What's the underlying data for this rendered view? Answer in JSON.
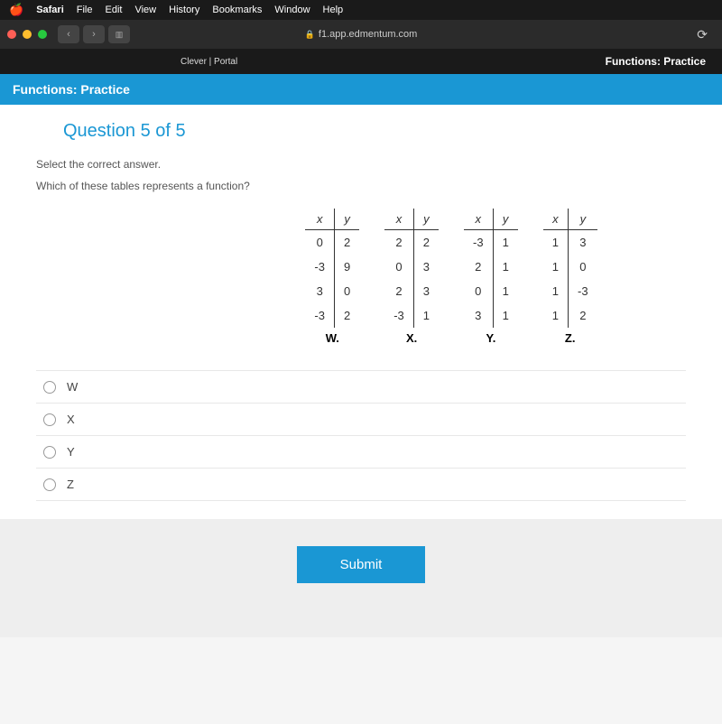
{
  "menubar": {
    "app": "Safari",
    "items": [
      "File",
      "Edit",
      "View",
      "History",
      "Bookmarks",
      "Window",
      "Help"
    ]
  },
  "toolbar": {
    "url": "f1.app.edmentum.com"
  },
  "header": {
    "tab": "Clever | Portal",
    "title": "Functions: Practice"
  },
  "bluebar": {
    "title": "Functions: Practice"
  },
  "question": {
    "number": "Question 5 of 5",
    "instruction": "Select the correct answer.",
    "text": "Which of these tables represents a function?"
  },
  "tables": [
    {
      "label": "W.",
      "headers": [
        "x",
        "y"
      ],
      "rows": [
        [
          "0",
          "2"
        ],
        [
          "-3",
          "9"
        ],
        [
          "3",
          "0"
        ],
        [
          "-3",
          "2"
        ]
      ]
    },
    {
      "label": "X.",
      "headers": [
        "x",
        "y"
      ],
      "rows": [
        [
          "2",
          "2"
        ],
        [
          "0",
          "3"
        ],
        [
          "2",
          "3"
        ],
        [
          "-3",
          "1"
        ]
      ]
    },
    {
      "label": "Y.",
      "headers": [
        "x",
        "y"
      ],
      "rows": [
        [
          "-3",
          "1"
        ],
        [
          "2",
          "1"
        ],
        [
          "0",
          "1"
        ],
        [
          "3",
          "1"
        ]
      ]
    },
    {
      "label": "Z.",
      "headers": [
        "x",
        "y"
      ],
      "rows": [
        [
          "1",
          "3"
        ],
        [
          "1",
          "0"
        ],
        [
          "1",
          "-3"
        ],
        [
          "1",
          "2"
        ]
      ]
    }
  ],
  "options": [
    {
      "label": "W"
    },
    {
      "label": "X"
    },
    {
      "label": "Y"
    },
    {
      "label": "Z"
    }
  ],
  "submit": {
    "label": "Submit"
  }
}
